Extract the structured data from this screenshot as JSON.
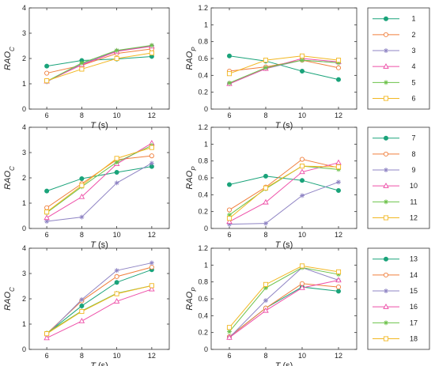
{
  "legend_groups": [
    {
      "entries": [
        {
          "name": "1",
          "color": "#1aa37a",
          "marker": "circle-filled"
        },
        {
          "name": "2",
          "color": "#f07f3c",
          "marker": "circle-open"
        },
        {
          "name": "3",
          "color": "#8f84c4",
          "marker": "star"
        },
        {
          "name": "4",
          "color": "#ee4fa8",
          "marker": "triangle-open"
        },
        {
          "name": "5",
          "color": "#6cc24a",
          "marker": "star"
        },
        {
          "name": "6",
          "color": "#f2b722",
          "marker": "square-open"
        }
      ]
    },
    {
      "entries": [
        {
          "name": "7",
          "color": "#1aa37a",
          "marker": "circle-filled"
        },
        {
          "name": "8",
          "color": "#f07f3c",
          "marker": "circle-open"
        },
        {
          "name": "9",
          "color": "#8f84c4",
          "marker": "star"
        },
        {
          "name": "10",
          "color": "#ee4fa8",
          "marker": "triangle-open"
        },
        {
          "name": "11",
          "color": "#6cc24a",
          "marker": "star"
        },
        {
          "name": "12",
          "color": "#f2b722",
          "marker": "square-open"
        }
      ]
    },
    {
      "entries": [
        {
          "name": "13",
          "color": "#1aa37a",
          "marker": "circle-filled"
        },
        {
          "name": "14",
          "color": "#f07f3c",
          "marker": "circle-open"
        },
        {
          "name": "15",
          "color": "#8f84c4",
          "marker": "star"
        },
        {
          "name": "16",
          "color": "#ee4fa8",
          "marker": "triangle-open"
        },
        {
          "name": "17",
          "color": "#6cc24a",
          "marker": "star"
        },
        {
          "name": "18",
          "color": "#f2b722",
          "marker": "square-open"
        }
      ]
    }
  ],
  "chart_data": [
    {
      "type": "line",
      "xlabel": "T (s)",
      "ylabel": "RAO_C",
      "x": [
        6,
        8,
        10,
        12
      ],
      "xticks": [
        "6",
        "8",
        "10",
        "12"
      ],
      "xlim": [
        5,
        13
      ],
      "ylim": [
        0,
        4
      ],
      "yticks": [
        "0",
        "1",
        "2",
        "3",
        "4"
      ],
      "series": [
        {
          "name": "1",
          "values": [
            1.7,
            1.92,
            1.98,
            2.08
          ]
        },
        {
          "name": "2",
          "values": [
            1.42,
            1.73,
            2.2,
            2.38
          ]
        },
        {
          "name": "3",
          "values": [
            1.08,
            1.78,
            2.3,
            2.5
          ]
        },
        {
          "name": "4",
          "values": [
            1.1,
            1.75,
            2.28,
            2.48
          ]
        },
        {
          "name": "5",
          "values": [
            1.1,
            1.82,
            2.32,
            2.52
          ]
        },
        {
          "name": "6",
          "values": [
            1.12,
            1.58,
            2.0,
            2.22
          ]
        }
      ]
    },
    {
      "type": "line",
      "xlabel": "T (s)",
      "ylabel": "RAO_P",
      "x": [
        6,
        8,
        10,
        12
      ],
      "xticks": [
        "6",
        "8",
        "10",
        "12"
      ],
      "xlim": [
        5,
        13
      ],
      "ylim": [
        0,
        1.2
      ],
      "yticks": [
        "0",
        "0.2",
        "0.4",
        "0.6",
        "0.8",
        "1",
        "1.2"
      ],
      "series": [
        {
          "name": "1",
          "values": [
            0.63,
            0.57,
            0.45,
            0.35
          ]
        },
        {
          "name": "2",
          "values": [
            0.45,
            0.5,
            0.58,
            0.49
          ]
        },
        {
          "name": "3",
          "values": [
            0.3,
            0.48,
            0.58,
            0.55
          ]
        },
        {
          "name": "4",
          "values": [
            0.3,
            0.48,
            0.6,
            0.56
          ]
        },
        {
          "name": "5",
          "values": [
            0.31,
            0.49,
            0.58,
            0.55
          ]
        },
        {
          "name": "6",
          "values": [
            0.42,
            0.58,
            0.63,
            0.58
          ]
        }
      ]
    },
    {
      "type": "line",
      "xlabel": "T (s)",
      "ylabel": "RAO_C",
      "x": [
        6,
        8,
        10,
        12
      ],
      "xticks": [
        "6",
        "8",
        "10",
        "12"
      ],
      "xlim": [
        5,
        13
      ],
      "ylim": [
        0,
        4
      ],
      "yticks": [
        "0",
        "1",
        "2",
        "3",
        "4"
      ],
      "series": [
        {
          "name": "7",
          "values": [
            1.48,
            1.97,
            2.22,
            2.45
          ]
        },
        {
          "name": "8",
          "values": [
            0.82,
            1.77,
            2.72,
            2.87
          ]
        },
        {
          "name": "9",
          "values": [
            0.28,
            0.45,
            1.8,
            2.58
          ]
        },
        {
          "name": "10",
          "values": [
            0.42,
            1.25,
            2.55,
            3.37
          ]
        },
        {
          "name": "11",
          "values": [
            0.62,
            1.65,
            2.62,
            3.28
          ]
        },
        {
          "name": "12",
          "values": [
            0.65,
            1.7,
            2.77,
            3.2
          ]
        }
      ]
    },
    {
      "type": "line",
      "xlabel": "T (s)",
      "ylabel": "RAO_P",
      "x": [
        6,
        8,
        10,
        12
      ],
      "xticks": [
        "6",
        "8",
        "10",
        "12"
      ],
      "xlim": [
        5,
        13
      ],
      "ylim": [
        0,
        1.2
      ],
      "yticks": [
        "0",
        "0.2",
        "0.4",
        "0.6",
        "0.8",
        "1",
        "1.2"
      ],
      "series": [
        {
          "name": "7",
          "values": [
            0.52,
            0.62,
            0.57,
            0.45
          ]
        },
        {
          "name": "8",
          "values": [
            0.22,
            0.49,
            0.82,
            0.72
          ]
        },
        {
          "name": "9",
          "values": [
            0.05,
            0.06,
            0.39,
            0.55
          ]
        },
        {
          "name": "10",
          "values": [
            0.08,
            0.31,
            0.67,
            0.78
          ]
        },
        {
          "name": "11",
          "values": [
            0.16,
            0.47,
            0.74,
            0.7
          ]
        },
        {
          "name": "12",
          "values": [
            0.12,
            0.48,
            0.74,
            0.73
          ]
        }
      ]
    },
    {
      "type": "line",
      "xlabel": "T (s)",
      "ylabel": "RAO_C",
      "x": [
        6,
        8,
        10,
        12
      ],
      "xticks": [
        "6",
        "8",
        "10",
        "12"
      ],
      "xlim": [
        5,
        13
      ],
      "ylim": [
        0,
        4
      ],
      "yticks": [
        "0",
        "1",
        "2",
        "3",
        "4"
      ],
      "series": [
        {
          "name": "13",
          "values": [
            0.62,
            1.72,
            2.65,
            3.15
          ]
        },
        {
          "name": "14",
          "values": [
            0.62,
            1.92,
            2.88,
            3.25
          ]
        },
        {
          "name": "15",
          "values": [
            0.58,
            1.97,
            3.12,
            3.42
          ]
        },
        {
          "name": "16",
          "values": [
            0.45,
            1.12,
            1.9,
            2.38
          ]
        },
        {
          "name": "17",
          "values": [
            0.65,
            1.52,
            2.22,
            2.52
          ]
        },
        {
          "name": "18",
          "values": [
            0.62,
            1.5,
            2.2,
            2.52
          ]
        }
      ]
    },
    {
      "type": "line",
      "xlabel": "T (s)",
      "ylabel": "RAO_P",
      "x": [
        6,
        8,
        10,
        12
      ],
      "xticks": [
        "6",
        "8",
        "10",
        "12"
      ],
      "xlim": [
        5,
        13
      ],
      "ylim": [
        0,
        1.2
      ],
      "yticks": [
        "0",
        "0.2",
        "0.4",
        "0.6",
        "0.8",
        "1",
        "1.2"
      ],
      "series": [
        {
          "name": "13",
          "values": [
            0.15,
            0.49,
            0.74,
            0.69
          ]
        },
        {
          "name": "14",
          "values": [
            0.15,
            0.49,
            0.78,
            0.74
          ]
        },
        {
          "name": "15",
          "values": [
            0.14,
            0.58,
            0.97,
            0.82
          ]
        },
        {
          "name": "16",
          "values": [
            0.14,
            0.46,
            0.73,
            0.82
          ]
        },
        {
          "name": "17",
          "values": [
            0.21,
            0.73,
            0.97,
            0.89
          ]
        },
        {
          "name": "18",
          "values": [
            0.26,
            0.77,
            0.99,
            0.92
          ]
        }
      ]
    }
  ]
}
